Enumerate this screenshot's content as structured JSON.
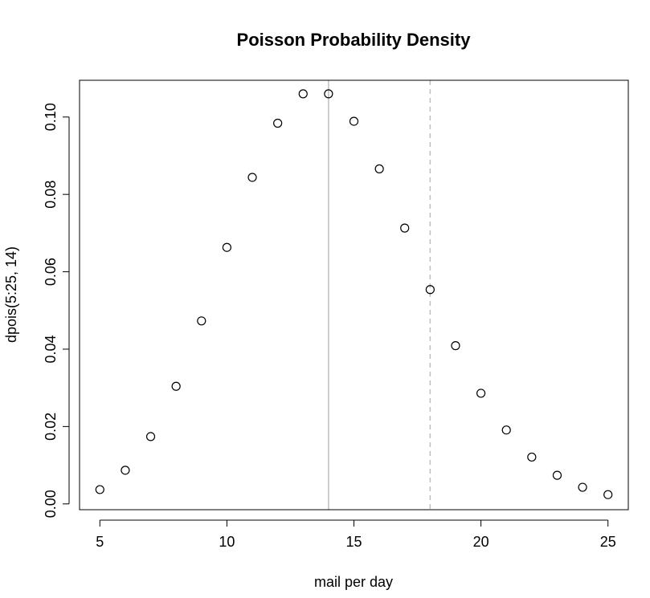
{
  "chart_data": {
    "type": "scatter",
    "title": "Poisson Probability Density",
    "xlabel": "mail per day",
    "ylabel": "dpois(5:25, 14)",
    "xlim": [
      4.2,
      25.8
    ],
    "ylim": [
      -0.0015,
      0.1095
    ],
    "x_ticks": [
      5,
      10,
      15,
      20,
      25
    ],
    "x_tick_labels": [
      "5",
      "10",
      "15",
      "20",
      "25"
    ],
    "y_ticks": [
      0.0,
      0.02,
      0.04,
      0.06,
      0.08,
      0.1
    ],
    "y_tick_labels": [
      "0.00",
      "0.02",
      "0.04",
      "0.06",
      "0.08",
      "0.10"
    ],
    "x": [
      5,
      6,
      7,
      8,
      9,
      10,
      11,
      12,
      13,
      14,
      15,
      16,
      17,
      18,
      19,
      20,
      21,
      22,
      23,
      24,
      25
    ],
    "y": [
      0.0037,
      0.0087,
      0.0174,
      0.0304,
      0.0473,
      0.0663,
      0.0844,
      0.0984,
      0.106,
      0.106,
      0.0989,
      0.0866,
      0.0713,
      0.0554,
      0.0409,
      0.0286,
      0.0191,
      0.0121,
      0.0074,
      0.0043,
      0.0024
    ],
    "reference_lines": [
      {
        "x": 14,
        "style": "solid",
        "color": "#bebebe"
      },
      {
        "x": 18,
        "style": "dashed",
        "color": "#bebebe"
      }
    ],
    "marker": "open-circle",
    "grid": false
  }
}
